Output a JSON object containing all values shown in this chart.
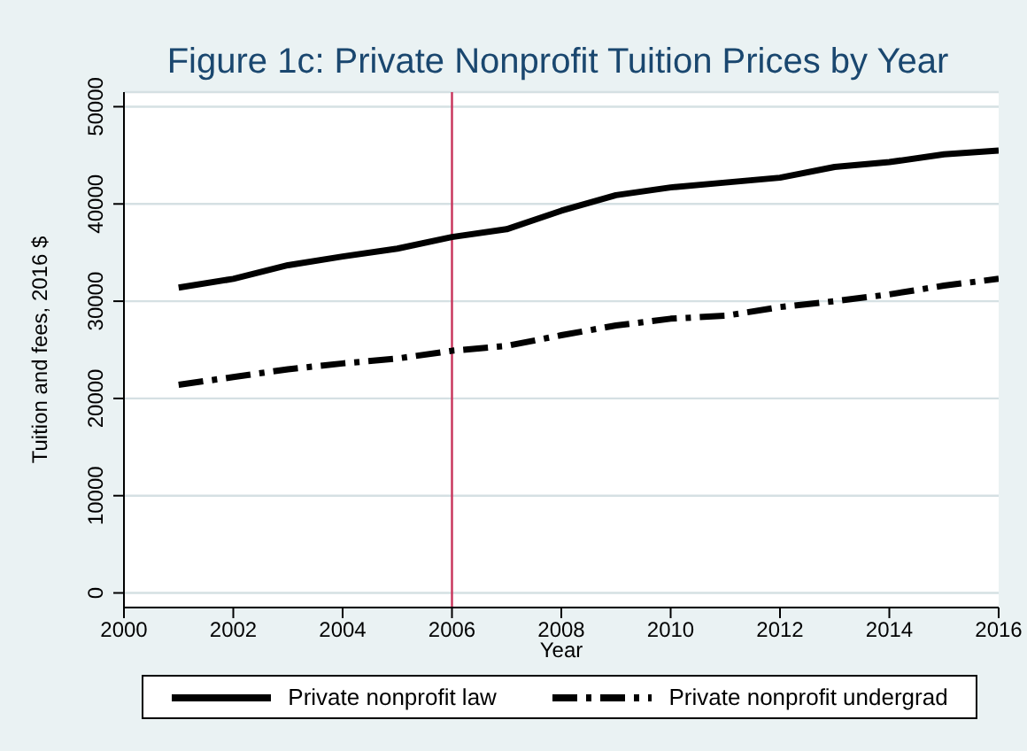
{
  "chart_data": {
    "type": "line",
    "title": "Figure 1c: Private Nonprofit Tuition Prices by Year",
    "xlabel": "Year",
    "ylabel": "Tuition and fees, 2016 $",
    "x": [
      2001,
      2002,
      2003,
      2004,
      2005,
      2006,
      2007,
      2008,
      2009,
      2010,
      2011,
      2012,
      2013,
      2014,
      2015,
      2016
    ],
    "series": [
      {
        "name": "Private nonprofit law",
        "color": "#000000",
        "line_style": "solid",
        "values": [
          31400,
          32300,
          33700,
          34600,
          35400,
          36600,
          37400,
          39300,
          40900,
          41700,
          42200,
          42700,
          43800,
          44300,
          45100,
          45500
        ]
      },
      {
        "name": "Private nonprofit undergrad",
        "color": "#000000",
        "line_style": "dashed",
        "values": [
          21400,
          22200,
          23000,
          23600,
          24100,
          24900,
          25400,
          26500,
          27500,
          28200,
          28500,
          29400,
          30000,
          30700,
          31600,
          32300
        ]
      }
    ],
    "xlim": [
      2000,
      2016
    ],
    "xticks": [
      2000,
      2002,
      2004,
      2006,
      2008,
      2010,
      2012,
      2014,
      2016
    ],
    "ylim": [
      -1500,
      51500
    ],
    "yticks": [
      0,
      10000,
      20000,
      30000,
      40000,
      50000
    ],
    "ref_lines": [
      {
        "axis": "x",
        "value": 2006,
        "color": "#c8325a"
      }
    ],
    "grid": "y",
    "legend": "bottom",
    "marker": "none"
  }
}
